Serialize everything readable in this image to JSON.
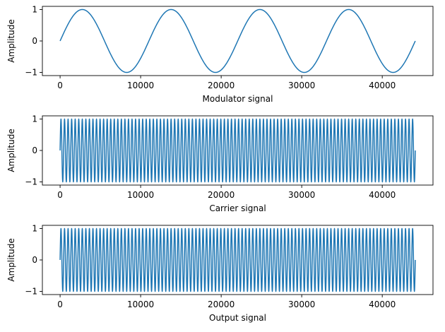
{
  "chart_data": [
    {
      "type": "line",
      "xlabel": "Modulator signal",
      "ylabel": "Amplitude",
      "xlim": [
        -2200,
        46300
      ],
      "ylim": [
        -1.1,
        1.1
      ],
      "xticks": [
        0,
        10000,
        20000,
        30000,
        40000
      ],
      "yticks": [
        -1,
        0,
        1
      ],
      "xtick_labels": [
        "0",
        "10000",
        "20000",
        "30000",
        "40000"
      ],
      "ytick_labels": [
        "−1",
        "0",
        "1"
      ],
      "series": [
        {
          "signal": "sine",
          "amplitude": 1,
          "cycles": 4,
          "x_start": 0,
          "x_end": 44100,
          "color": "#1f77b4"
        }
      ]
    },
    {
      "type": "line",
      "xlabel": "Carrier signal",
      "ylabel": "Amplitude",
      "xlim": [
        -2200,
        46300
      ],
      "ylim": [
        -1.1,
        1.1
      ],
      "xticks": [
        0,
        10000,
        20000,
        30000,
        40000
      ],
      "yticks": [
        -1,
        0,
        1
      ],
      "xtick_labels": [
        "0",
        "10000",
        "20000",
        "30000",
        "40000"
      ],
      "ytick_labels": [
        "−1",
        "0",
        "1"
      ],
      "series": [
        {
          "signal": "sine",
          "amplitude": 1,
          "cycles": 100,
          "x_start": 0,
          "x_end": 44100,
          "color": "#1f77b4"
        }
      ]
    },
    {
      "type": "line",
      "xlabel": "Output signal",
      "ylabel": "Amplitude",
      "xlim": [
        -2200,
        46300
      ],
      "ylim": [
        -1.1,
        1.1
      ],
      "xticks": [
        0,
        10000,
        20000,
        30000,
        40000
      ],
      "yticks": [
        -1,
        0,
        1
      ],
      "xtick_labels": [
        "0",
        "10000",
        "20000",
        "30000",
        "40000"
      ],
      "ytick_labels": [
        "−1",
        "0",
        "1"
      ],
      "series": [
        {
          "signal": "sine",
          "amplitude": 1,
          "cycles": 100,
          "x_start": 0,
          "x_end": 44100,
          "color": "#1f77b4"
        }
      ]
    }
  ]
}
